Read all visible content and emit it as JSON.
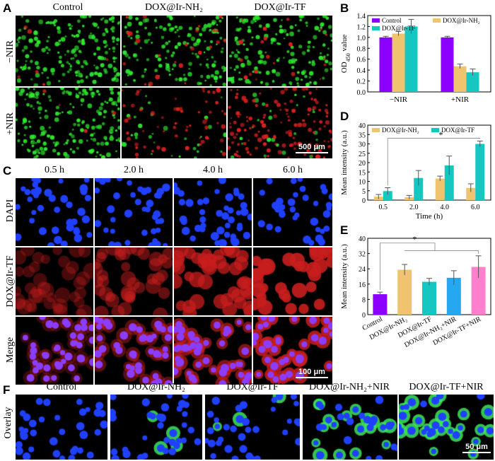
{
  "panel_labels": [
    "A",
    "B",
    "C",
    "D",
    "E",
    "F"
  ],
  "panel_a": {
    "columns": [
      "Control",
      "DOX@Ir-NH₂",
      "DOX@Ir-TF"
    ],
    "rows": [
      "−NIR",
      "+NIR"
    ],
    "scale_bar": "500 μm"
  },
  "panel_c": {
    "columns": [
      "0.5 h",
      "2.0 h",
      "4.0 h",
      "6.0 h"
    ],
    "rows": [
      "DAPI",
      "DOX@Ir-TF",
      "Merge"
    ],
    "scale_bar": "100 μm"
  },
  "panel_f": {
    "columns": [
      "Control",
      "DOX@Ir-NH₂",
      "DOX@Ir-TF",
      "DOX@Ir-NH₂+NIR",
      "DOX@Ir-TF+NIR"
    ],
    "row": "Overlay",
    "scale_bar": "50 μm"
  },
  "colors": {
    "control": "#8b00ff",
    "nh2": "#f0c46e",
    "tf": "#16c6c0",
    "nh2_nir": "#25a8f0",
    "tf_nir": "#ff7fcf",
    "green_fluor": "#2ee82e",
    "red_fluor": "#e02020",
    "blue_fluor": "#2040ff"
  },
  "chart_data": [
    {
      "panel": "B",
      "type": "bar",
      "categories": [
        "−NIR",
        "+NIR"
      ],
      "ylabel": "OD450 value",
      "ylim": [
        0,
        1.4
      ],
      "yticks": [
        "0.0",
        "0.2",
        "0.4",
        "0.6",
        "0.8",
        "1.0",
        "1.2",
        "1.4"
      ],
      "legend": "top",
      "series": [
        {
          "name": "Control",
          "values": [
            1.0,
            1.0
          ],
          "errors": [
            0.02,
            0.02
          ]
        },
        {
          "name": "DOX@Ir-NH₂",
          "values": [
            1.07,
            0.47
          ],
          "errors": [
            0.04,
            0.04
          ]
        },
        {
          "name": "DOX@Ir-TF",
          "values": [
            1.2,
            0.36
          ],
          "errors": [
            0.13,
            0.06
          ]
        }
      ]
    },
    {
      "panel": "D",
      "type": "bar",
      "categories": [
        "0.5",
        "2.0",
        "4.0",
        "6.0"
      ],
      "xlabel": "Time (h)",
      "ylabel": "Mean intensity (a.u.)",
      "ylim": [
        0,
        40
      ],
      "yticks": [
        "0",
        "5",
        "10",
        "15",
        "20",
        "25",
        "30",
        "35",
        "40"
      ],
      "legend": "top",
      "annotation": "*",
      "series": [
        {
          "name": "DOX@Ir-NH₂",
          "values": [
            1.8,
            1.5,
            11.5,
            6.5
          ],
          "errors": [
            1.2,
            1.0,
            1.3,
            2.2
          ]
        },
        {
          "name": "DOX@Ir-TF",
          "values": [
            4.8,
            11.8,
            18.5,
            30.0
          ],
          "errors": [
            1.8,
            4.0,
            5.0,
            1.5
          ]
        }
      ]
    },
    {
      "panel": "E",
      "type": "bar",
      "categories": [
        "Control",
        "DOX@Ir-NH₂",
        "DOX@Ir-TF",
        "DOX@Ir-NH₂+NIR",
        "DOX@Ir-TF+NIR"
      ],
      "ylabel": "Mean intensity (a.u.)",
      "ylim": [
        0,
        40
      ],
      "yticks": [
        "0",
        "8",
        "16",
        "24",
        "32",
        "40"
      ],
      "annotation": "*",
      "values": [
        10.7,
        23.5,
        17.2,
        19.3,
        25.0
      ],
      "errors": [
        1.1,
        2.8,
        1.8,
        3.7,
        5.8
      ]
    }
  ]
}
